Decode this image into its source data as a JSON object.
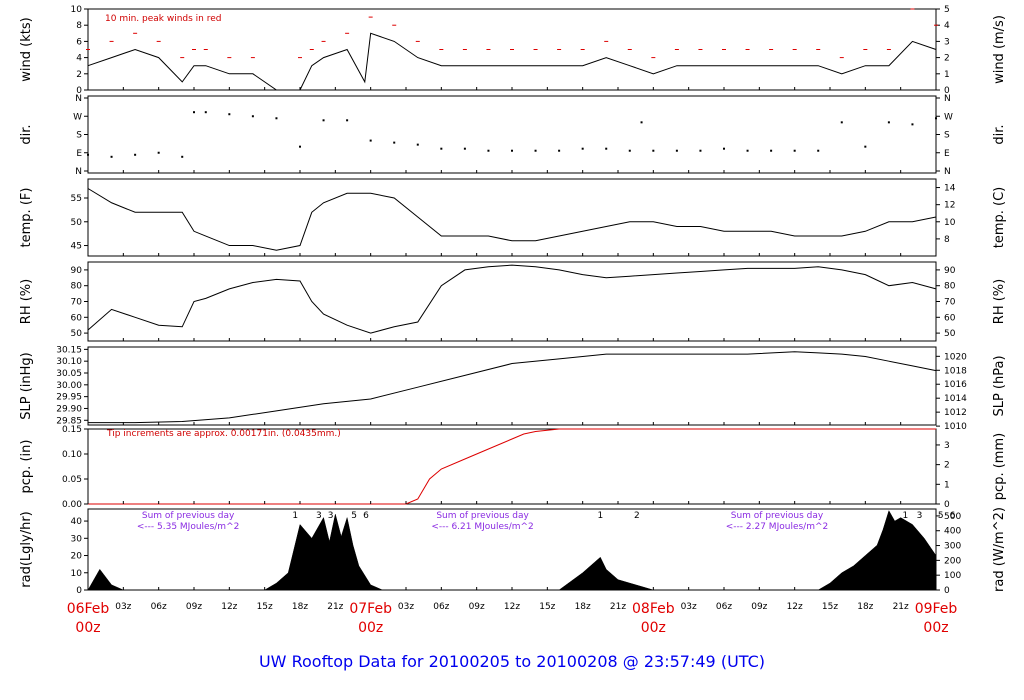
{
  "title": "UW Rooftop Data for 20100205  to  20100208 @ 23:57:49  (UTC)",
  "colors": {
    "series": "#000000",
    "peak": "#dd0000",
    "precip": "#dd0000",
    "dates": "#dd0000",
    "title": "#0000ee",
    "notes_purple": "#8a2be2"
  },
  "time_axis": {
    "minor_labels": [
      "03z",
      "06z",
      "09z",
      "12z",
      "15z",
      "18z",
      "21z",
      "03z",
      "06z",
      "09z",
      "12z",
      "15z",
      "18z",
      "21z",
      "03z",
      "06z",
      "09z",
      "12z",
      "15z",
      "18z",
      "21z"
    ],
    "minor_hours": [
      3,
      6,
      9,
      12,
      15,
      18,
      21,
      27,
      30,
      33,
      36,
      39,
      42,
      45,
      51,
      54,
      57,
      60,
      63,
      66,
      69
    ],
    "major": [
      {
        "date": "06Feb",
        "hour_label": "00z",
        "hour": 0
      },
      {
        "date": "07Feb",
        "hour_label": "00z",
        "hour": 24
      },
      {
        "date": "08Feb",
        "hour_label": "00z",
        "hour": 48
      },
      {
        "date": "09Feb",
        "hour_label": "00z",
        "hour": 72
      }
    ]
  },
  "chart_data": [
    {
      "type": "line",
      "id": "wind",
      "ylabel": "wind (kts)",
      "ylabel_right": "wind (m/s)",
      "ylim": [
        0,
        10
      ],
      "yticks": [
        "0",
        "2",
        "4",
        "6",
        "8",
        "10"
      ],
      "yticks_right": [
        "0",
        "1",
        "2",
        "3",
        "4",
        "5"
      ],
      "annotation": "10 min. peak winds in red",
      "series": [
        {
          "name": "wind",
          "x": [
            0,
            2,
            4,
            6,
            8,
            9,
            10,
            12,
            14,
            16,
            18,
            19,
            20,
            22,
            23.5,
            24,
            26,
            28,
            30,
            32,
            34,
            36,
            38,
            40,
            42,
            44,
            46,
            48,
            50,
            52,
            54,
            56,
            58,
            60,
            62,
            64,
            66,
            68,
            70,
            72
          ],
          "y": [
            3,
            4,
            5,
            4,
            1,
            3,
            3,
            2,
            2,
            0,
            0,
            3,
            4,
            5,
            1,
            7,
            6,
            4,
            3,
            3,
            3,
            3,
            3,
            3,
            3,
            4,
            3,
            2,
            3,
            3,
            3,
            3,
            3,
            3,
            3,
            2,
            3,
            3,
            6,
            5
          ]
        },
        {
          "name": "10 min. peak winds",
          "x": [
            0,
            2,
            4,
            6,
            8,
            9,
            10,
            12,
            14,
            18,
            19,
            20,
            22,
            24,
            26,
            28,
            30,
            32,
            34,
            36,
            38,
            40,
            42,
            44,
            46,
            48,
            50,
            52,
            54,
            56,
            58,
            60,
            62,
            64,
            66,
            68,
            70,
            72
          ],
          "y": [
            5,
            6,
            7,
            6,
            4,
            5,
            5,
            4,
            4,
            4,
            5,
            6,
            7,
            9,
            8,
            6,
            5,
            5,
            5,
            5,
            5,
            5,
            5,
            6,
            5,
            4,
            5,
            5,
            5,
            5,
            5,
            5,
            5,
            4,
            5,
            5,
            10,
            8
          ]
        }
      ]
    },
    {
      "type": "scatter",
      "id": "dir",
      "ylabel": "dir.",
      "ylabel_right": "dir.",
      "yticks": [
        "N",
        "E",
        "S",
        "W",
        "N"
      ],
      "yticks_right": [
        "N",
        "E",
        "S",
        "W",
        "N"
      ],
      "series": [
        {
          "name": "dir",
          "x": [
            0,
            2,
            4,
            6,
            8,
            9,
            10,
            12,
            14,
            16,
            18,
            20,
            22,
            24,
            26,
            28,
            30,
            32,
            34,
            36,
            38,
            40,
            42,
            44,
            46,
            47,
            48,
            50,
            52,
            54,
            56,
            58,
            60,
            62,
            64,
            66,
            68,
            70,
            72
          ],
          "y_deg": [
            80,
            70,
            80,
            90,
            70,
            290,
            290,
            280,
            270,
            260,
            120,
            250,
            250,
            150,
            140,
            130,
            110,
            110,
            100,
            100,
            100,
            100,
            110,
            110,
            100,
            240,
            100,
            100,
            100,
            110,
            100,
            100,
            100,
            100,
            240,
            120,
            240,
            230,
            260
          ]
        }
      ]
    },
    {
      "type": "line",
      "id": "temp",
      "ylabel": "temp. (F)",
      "ylabel_right": "temp. (C)",
      "ylim": [
        42.8,
        59
      ],
      "yticks": [
        "45",
        "50",
        "55"
      ],
      "yticks_right": [
        "8",
        "10",
        "12",
        "14"
      ],
      "series": [
        {
          "name": "temp",
          "x": [
            0,
            2,
            4,
            6,
            8,
            9,
            10,
            12,
            14,
            16,
            18,
            19,
            20,
            22,
            24,
            26,
            28,
            30,
            32,
            34,
            36,
            38,
            40,
            42,
            44,
            46,
            48,
            50,
            52,
            54,
            56,
            58,
            60,
            62,
            64,
            66,
            68,
            70,
            72
          ],
          "y": [
            57,
            54,
            52,
            52,
            52,
            48,
            47,
            45,
            45,
            44,
            45,
            52,
            54,
            56,
            56,
            55,
            51,
            47,
            47,
            47,
            46,
            46,
            47,
            48,
            49,
            50,
            50,
            49,
            49,
            48,
            48,
            48,
            47,
            47,
            47,
            48,
            50,
            50,
            51
          ]
        }
      ]
    },
    {
      "type": "line",
      "id": "rh",
      "ylabel": "RH (%)",
      "ylabel_right": "RH (%)",
      "ylim": [
        45,
        95
      ],
      "yticks": [
        "50",
        "60",
        "70",
        "80",
        "90"
      ],
      "yticks_right": [
        "50",
        "60",
        "70",
        "80",
        "90"
      ],
      "series": [
        {
          "name": "RH",
          "x": [
            0,
            2,
            4,
            6,
            8,
            9,
            10,
            12,
            14,
            16,
            18,
            19,
            20,
            22,
            24,
            26,
            28,
            30,
            32,
            34,
            36,
            38,
            40,
            42,
            44,
            46,
            48,
            50,
            52,
            54,
            56,
            58,
            60,
            62,
            64,
            66,
            68,
            70,
            72
          ],
          "y": [
            52,
            65,
            60,
            55,
            54,
            70,
            72,
            78,
            82,
            84,
            83,
            70,
            62,
            55,
            50,
            54,
            57,
            80,
            90,
            92,
            93,
            92,
            90,
            87,
            85,
            86,
            87,
            88,
            89,
            90,
            91,
            91,
            91,
            92,
            90,
            87,
            80,
            82,
            78
          ]
        }
      ]
    },
    {
      "type": "line",
      "id": "slp",
      "ylabel": "SLP (inHg)",
      "ylabel_right": "SLP (hPa)",
      "ylim": [
        29.83,
        30.16
      ],
      "yticks": [
        "29.85",
        "29.90",
        "29.95",
        "30.00",
        "30.05",
        "30.10",
        "30.15"
      ],
      "yticks_right": [
        "1010",
        "1012",
        "1014",
        "1016",
        "1018",
        "1020"
      ],
      "series": [
        {
          "name": "SLP",
          "x": [
            0,
            4,
            8,
            12,
            16,
            20,
            24,
            28,
            32,
            36,
            40,
            44,
            48,
            52,
            56,
            60,
            62,
            64,
            66,
            68,
            70,
            72
          ],
          "y": [
            29.84,
            29.84,
            29.845,
            29.86,
            29.89,
            29.92,
            29.94,
            29.99,
            30.04,
            30.09,
            30.11,
            30.13,
            30.13,
            30.13,
            30.13,
            30.14,
            30.135,
            30.13,
            30.12,
            30.1,
            30.08,
            30.06
          ]
        }
      ]
    },
    {
      "type": "line",
      "id": "pcp",
      "ylabel": "pcp. (in)",
      "ylabel_right": "pcp. (mm)",
      "ylim": [
        0,
        0.15
      ],
      "yticks": [
        "0.00",
        "0.05",
        "0.10",
        "0.15"
      ],
      "yticks_right": [
        "0",
        "1",
        "2",
        "3"
      ],
      "annotation": "Tip increments are approx. 0.00171in. (0.0435mm.)",
      "series": [
        {
          "name": "pcp",
          "x": [
            0,
            24,
            27,
            28,
            29,
            30,
            32,
            34,
            36,
            37,
            38,
            40,
            42,
            48,
            56,
            64,
            72
          ],
          "y": [
            0,
            0,
            0,
            0.01,
            0.05,
            0.07,
            0.09,
            0.11,
            0.13,
            0.14,
            0.145,
            0.15,
            0.15,
            0.15,
            0.15,
            0.15,
            0.15
          ]
        }
      ]
    },
    {
      "type": "area",
      "id": "rad",
      "ylabel": "rad(Lgly/hr)",
      "ylabel_right": "rad (W/m^2)",
      "ylim": [
        0,
        47
      ],
      "yticks": [
        "0",
        "10",
        "20",
        "30",
        "40"
      ],
      "yticks_right": [
        "0",
        "100",
        "200",
        "300",
        "400",
        "500"
      ],
      "day_marks": [
        {
          "hour": 17.6,
          "label": "1"
        },
        {
          "hour": 19.6,
          "label": "3"
        },
        {
          "hour": 20.6,
          "label": "3"
        },
        {
          "hour": 22.6,
          "label": "5"
        },
        {
          "hour": 23.6,
          "label": "6"
        },
        {
          "hour": 43.5,
          "label": "1"
        },
        {
          "hour": 46.6,
          "label": "2"
        },
        {
          "hour": 69.4,
          "label": "1"
        },
        {
          "hour": 70.6,
          "label": "3"
        },
        {
          "hour": 72.4,
          "label": "5"
        },
        {
          "hour": 73.4,
          "label": "6"
        }
      ],
      "day_sums": [
        {
          "hour": 8.5,
          "line1": "Sum of previous day",
          "line2": "<--- 5.35 MJoules/m^2"
        },
        {
          "hour": 33.5,
          "line1": "Sum of previous day",
          "line2": "<--- 6.21 MJoules/m^2"
        },
        {
          "hour": 58.5,
          "line1": "Sum of previous day",
          "line2": "<--- 2.27 MJoules/m^2"
        }
      ],
      "series": [
        {
          "name": "rad",
          "x": [
            0,
            1,
            2,
            3,
            15,
            16,
            17,
            18,
            19,
            20,
            20.5,
            21,
            21.5,
            22,
            22.5,
            23,
            24,
            25,
            26,
            40,
            41,
            42,
            43,
            43.5,
            44,
            45,
            46,
            47,
            48,
            62,
            63,
            64,
            65,
            66,
            67,
            67.5,
            68,
            68.5,
            69,
            70,
            71,
            72
          ],
          "y": [
            0,
            12,
            3,
            0,
            0,
            4,
            10,
            38,
            30,
            42,
            28,
            44,
            31,
            42,
            26,
            14,
            3,
            0,
            0,
            0,
            5,
            10,
            16,
            19,
            12,
            6,
            4,
            2,
            0,
            0,
            4,
            10,
            14,
            20,
            26,
            35,
            46,
            40,
            42,
            38,
            30,
            20
          ]
        }
      ]
    }
  ]
}
